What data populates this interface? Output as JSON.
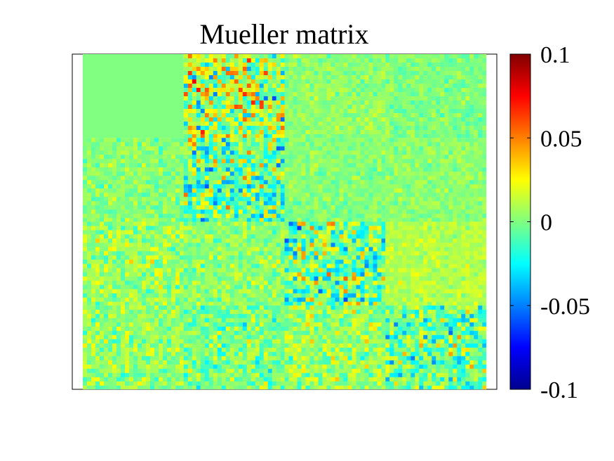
{
  "chart_data": {
    "type": "heatmap",
    "title": "Mueller matrix",
    "xlabel": "",
    "ylabel": "",
    "grid": false,
    "rows": 4,
    "cols": 4,
    "colormap": "jet",
    "clim": [
      -0.1,
      0.1
    ],
    "colorbar": {
      "location": "right",
      "ticks": [
        0.1,
        0.05,
        0,
        -0.05,
        -0.1
      ],
      "tick_labels": [
        "0.1",
        "0.05",
        "0",
        "-0.05",
        "-0.1"
      ]
    },
    "blocks": [
      {
        "row": 1,
        "col": 1,
        "mean": 0.0,
        "noise": 0.0
      },
      {
        "row": 1,
        "col": 2,
        "mean": 0.01,
        "noise": 0.05
      },
      {
        "row": 1,
        "col": 3,
        "mean": 0.003,
        "noise": 0.012
      },
      {
        "row": 1,
        "col": 4,
        "mean": 0.0,
        "noise": 0.012
      },
      {
        "row": 2,
        "col": 1,
        "mean": 0.002,
        "noise": 0.015
      },
      {
        "row": 2,
        "col": 2,
        "mean": -0.004,
        "noise": 0.045
      },
      {
        "row": 2,
        "col": 3,
        "mean": 0.001,
        "noise": 0.012
      },
      {
        "row": 2,
        "col": 4,
        "mean": 0.003,
        "noise": 0.012
      },
      {
        "row": 3,
        "col": 1,
        "mean": 0.006,
        "noise": 0.022
      },
      {
        "row": 3,
        "col": 2,
        "mean": 0.003,
        "noise": 0.018
      },
      {
        "row": 3,
        "col": 3,
        "mean": -0.003,
        "noise": 0.045
      },
      {
        "row": 3,
        "col": 4,
        "mean": 0.011,
        "noise": 0.012
      },
      {
        "row": 4,
        "col": 1,
        "mean": 0.005,
        "noise": 0.02
      },
      {
        "row": 4,
        "col": 2,
        "mean": -0.002,
        "noise": 0.025
      },
      {
        "row": 4,
        "col": 3,
        "mean": 0.006,
        "noise": 0.025
      },
      {
        "row": 4,
        "col": 4,
        "mean": -0.004,
        "noise": 0.04
      }
    ]
  }
}
